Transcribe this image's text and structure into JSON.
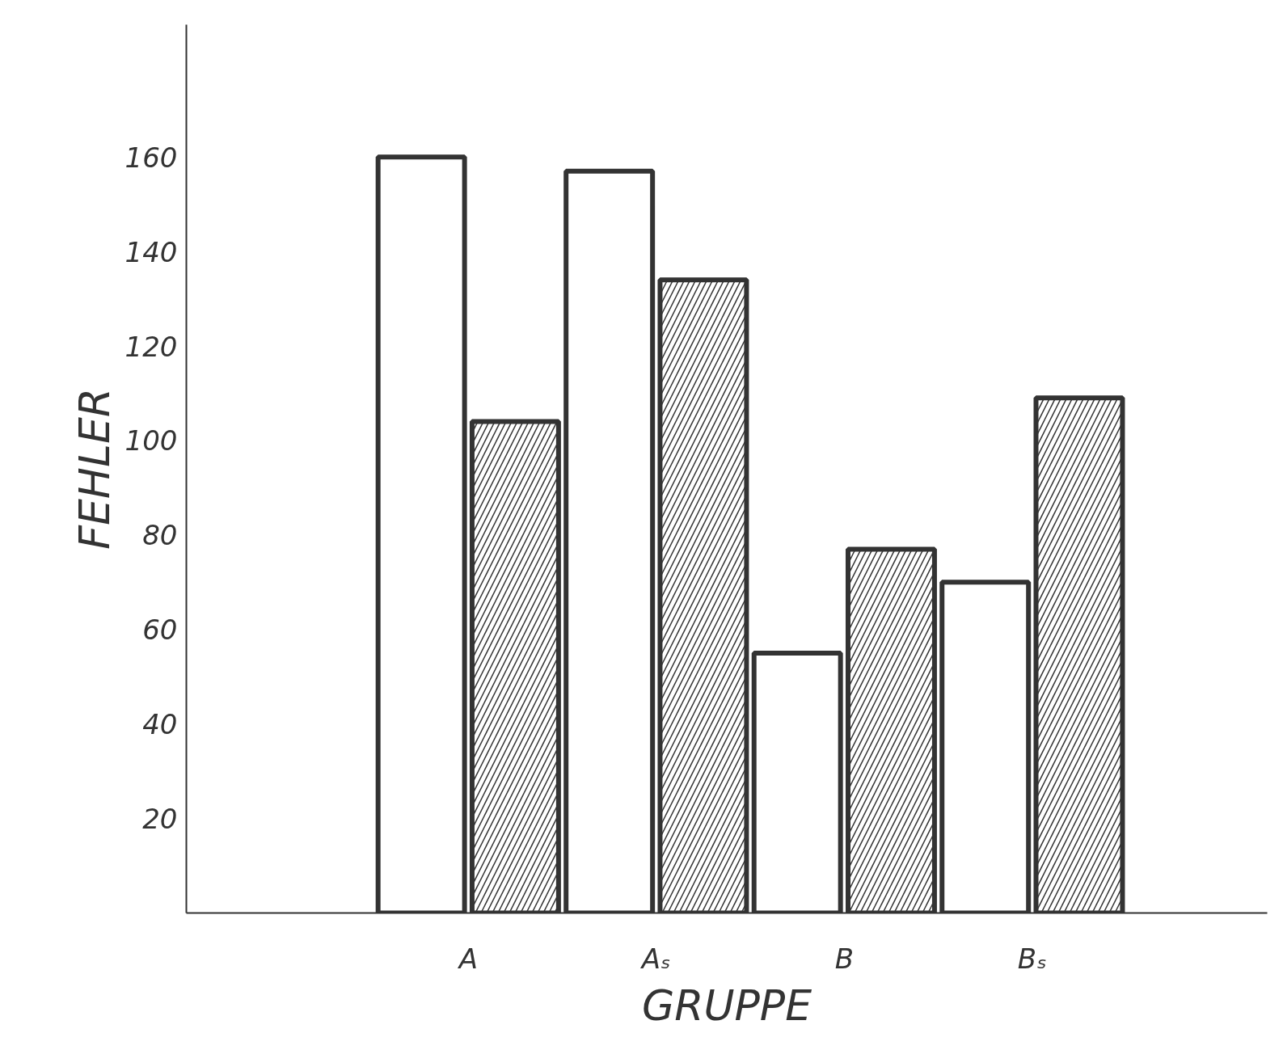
{
  "chart_data": {
    "type": "bar",
    "xlabel": "GRUPPE",
    "ylabel": "FEHLER",
    "categories": [
      "A",
      "Aₛ",
      "B",
      "Bₛ"
    ],
    "series": [
      {
        "color": "#ffffff",
        "values": [
          160,
          157,
          55,
          70
        ]
      },
      {
        "color": "#ffffff",
        "values": [
          104,
          134,
          77,
          109
        ]
      }
    ],
    "ylim": [
      0,
      188
    ],
    "yticks": [
      20,
      40,
      60,
      80,
      100,
      120,
      140,
      160
    ],
    "grid": false,
    "legend": false
  }
}
